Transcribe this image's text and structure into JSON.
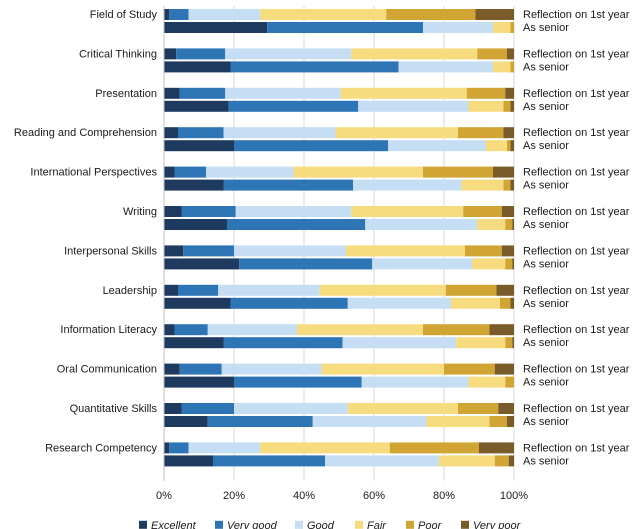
{
  "chart_data": {
    "type": "bar",
    "orientation": "horizontal",
    "stacked": true,
    "percent": true,
    "title": "",
    "xlabel": "",
    "ylabel": "",
    "xlim": [
      0,
      100
    ],
    "x_ticks": [
      "0%",
      "20%",
      "40%",
      "60%",
      "80%",
      "100%"
    ],
    "legend_position": "bottom",
    "row_labels": [
      "Reflection on 1st year",
      "As senior"
    ],
    "series": [
      {
        "name": "Excellent",
        "color": "#1f3a5f"
      },
      {
        "name": "Very good",
        "color": "#2e75b6"
      },
      {
        "name": "Good",
        "color": "#c5def4"
      },
      {
        "name": "Fair",
        "color": "#f7dc7f"
      },
      {
        "name": "Poor",
        "color": "#d0a534"
      },
      {
        "name": "Very poor",
        "color": "#7a5c2a"
      }
    ],
    "categories": [
      {
        "name": "Field of Study",
        "first_year": [
          1.5,
          5.5,
          20.5,
          36,
          25.5,
          11
        ],
        "senior": [
          29.5,
          44.5,
          20,
          5,
          1,
          0
        ]
      },
      {
        "name": "Critical Thinking",
        "first_year": [
          3.5,
          14,
          36,
          36,
          8.5,
          2
        ],
        "senior": [
          19,
          48,
          27,
          5,
          1,
          0
        ]
      },
      {
        "name": "Presentation",
        "first_year": [
          4.5,
          13,
          33,
          36,
          11,
          2.5
        ],
        "senior": [
          18.5,
          37,
          31.5,
          10,
          2,
          1
        ]
      },
      {
        "name": "Reading and Comprehension",
        "first_year": [
          4,
          13,
          32,
          35,
          13,
          3
        ],
        "senior": [
          20,
          44,
          28,
          6,
          1,
          1
        ]
      },
      {
        "name": "International Perspectives",
        "first_year": [
          3,
          9,
          25,
          37,
          20,
          6
        ],
        "senior": [
          17,
          37,
          31,
          12,
          2,
          1
        ]
      },
      {
        "name": "Writing",
        "first_year": [
          5,
          15.5,
          33,
          32,
          11,
          3.5
        ],
        "senior": [
          18,
          39.5,
          32,
          8,
          2,
          0.5
        ]
      },
      {
        "name": "Interpersonal Skills",
        "first_year": [
          5.5,
          14.5,
          32,
          34,
          10.5,
          3.5
        ],
        "senior": [
          21.5,
          38,
          28.5,
          9.5,
          2,
          0.5
        ]
      },
      {
        "name": "Leadership",
        "first_year": [
          4,
          11.5,
          29,
          36,
          14.5,
          5
        ],
        "senior": [
          19,
          33.5,
          29.5,
          14,
          3,
          1
        ]
      },
      {
        "name": "Information Literacy",
        "first_year": [
          3,
          9.5,
          25.5,
          36,
          19,
          7
        ],
        "senior": [
          17,
          34,
          32.5,
          14,
          2,
          0.5
        ]
      },
      {
        "name": "Oral Communication",
        "first_year": [
          4.5,
          12,
          28.5,
          35,
          14.5,
          5.5
        ],
        "senior": [
          20,
          36.5,
          30.5,
          10.5,
          2.5,
          0
        ]
      },
      {
        "name": "Quantitative Skills",
        "first_year": [
          5,
          15,
          32.5,
          31.5,
          11.5,
          4.5
        ],
        "senior": [
          12.5,
          30,
          32.5,
          18,
          5,
          2
        ]
      },
      {
        "name": "Research Competency",
        "first_year": [
          1.5,
          5.5,
          20.5,
          37,
          25.5,
          10
        ],
        "senior": [
          14,
          32,
          32.5,
          16,
          4,
          1.5
        ]
      }
    ]
  }
}
